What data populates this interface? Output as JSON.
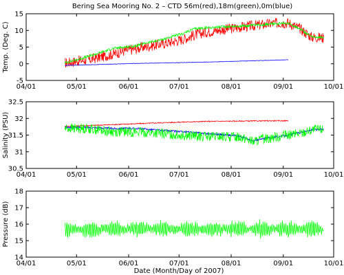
{
  "figure": {
    "title": "Bering Sea Mooring No. 2 – CTD 56m(red),18m(green),0m(blue)",
    "xlabel": "Date (Month/Day of 2007)"
  },
  "chart_data": [
    {
      "type": "line",
      "ylabel": "Temp. (Deg. C)",
      "xlim": [
        "04/01",
        "10/01"
      ],
      "ylim": [
        -5,
        15
      ],
      "x_tick_labels": [
        "04/01",
        "05/01",
        "06/01",
        "07/01",
        "08/01",
        "09/01",
        "10/01"
      ],
      "y_ticks": [
        -5,
        0,
        5,
        10,
        15
      ],
      "grid": false,
      "legend": "none",
      "colors": {
        "56m": "#ff0000",
        "18m": "#00ff00",
        "0m": "#0000ff"
      },
      "series": [
        {
          "x": [
            "04/24",
            "05/01",
            "05/08",
            "05/15",
            "05/22",
            "05/29",
            "06/05",
            "06/12",
            "06/19",
            "06/26",
            "07/03",
            "07/10",
            "07/17",
            "07/24",
            "07/31",
            "08/07",
            "08/14",
            "08/21",
            "08/28",
            "09/04",
            "09/11",
            "09/18",
            "09/25"
          ],
          "values": [
            0.2,
            0.8,
            1.2,
            2.0,
            2.8,
            3.8,
            4.5,
            5.2,
            5.8,
            6.5,
            7.3,
            8.6,
            9.5,
            10.0,
            10.5,
            11.0,
            11.4,
            11.8,
            12.2,
            12.3,
            10.5,
            8.0,
            7.8
          ],
          "noise": 1.6
        },
        {
          "x": [
            "04/24",
            "05/01",
            "05/08",
            "05/15",
            "05/22",
            "05/29",
            "06/05",
            "06/12",
            "06/19",
            "06/26",
            "07/03",
            "07/10",
            "07/17",
            "07/24",
            "07/31",
            "08/07",
            "08/14",
            "08/21",
            "08/28",
            "09/04",
            "09/11",
            "09/18",
            "09/25"
          ],
          "values": [
            0.3,
            1.2,
            2.2,
            3.3,
            4.5,
            5.0,
            5.3,
            6.3,
            7.0,
            8.0,
            9.0,
            10.5,
            10.8,
            11.0,
            11.2,
            11.3,
            11.5,
            11.8,
            12.0,
            12.2,
            10.5,
            8.0,
            7.8
          ],
          "noise": 0.4
        },
        {
          "x": [
            "04/24",
            "05/15",
            "06/05",
            "06/26",
            "07/17",
            "08/07",
            "08/28",
            "09/04"
          ],
          "values": [
            -0.5,
            -0.2,
            0.1,
            0.3,
            0.5,
            0.8,
            1.1,
            1.2
          ],
          "noise": 0.05
        }
      ]
    },
    {
      "type": "line",
      "ylabel": "Salinity (PSU)",
      "xlim": [
        "04/01",
        "10/01"
      ],
      "ylim": [
        30.5,
        32.5
      ],
      "x_tick_labels": [
        "04/01",
        "05/01",
        "06/01",
        "07/01",
        "08/01",
        "09/01",
        "10/01"
      ],
      "y_ticks": [
        30.5,
        31,
        31.5,
        32,
        32.5
      ],
      "grid": false,
      "legend": "none",
      "colors": {
        "56m": "#ff0000",
        "18m": "#00ff00",
        "0m": "#0000ff"
      },
      "series": [
        {
          "x": [
            "04/24",
            "05/15",
            "06/05",
            "06/26",
            "07/17",
            "08/07",
            "08/28",
            "09/04"
          ],
          "values": [
            31.76,
            31.8,
            31.84,
            31.88,
            31.91,
            31.92,
            31.93,
            31.93
          ],
          "noise": 0.015
        },
        {
          "x": [
            "04/24",
            "05/08",
            "05/22",
            "06/05",
            "06/19",
            "07/03",
            "07/17",
            "07/31",
            "08/07",
            "08/14",
            "08/21",
            "08/28",
            "09/04",
            "09/11",
            "09/18",
            "09/25"
          ],
          "values": [
            31.7,
            31.7,
            31.6,
            31.6,
            31.55,
            31.5,
            31.45,
            31.45,
            31.45,
            31.3,
            31.4,
            31.45,
            31.5,
            31.55,
            31.65,
            31.68
          ],
          "noise": 0.15
        },
        {
          "x": [
            "04/24",
            "05/08",
            "05/22",
            "06/05",
            "06/19",
            "07/03",
            "07/17",
            "07/31",
            "08/07",
            "08/14",
            "08/21",
            "08/28",
            "09/04",
            "09/11",
            "09/18",
            "09/25"
          ],
          "values": [
            31.73,
            31.73,
            31.7,
            31.7,
            31.65,
            31.6,
            31.55,
            31.5,
            31.45,
            31.32,
            31.4,
            31.45,
            31.5,
            31.58,
            31.65,
            31.68
          ],
          "noise": 0.03
        }
      ]
    },
    {
      "type": "line",
      "ylabel": "Pressure (dB)",
      "xlim": [
        "04/01",
        "10/01"
      ],
      "ylim": [
        14,
        18
      ],
      "x_tick_labels": [
        "04/01",
        "05/01",
        "06/01",
        "07/01",
        "08/01",
        "09/01",
        "10/01"
      ],
      "y_ticks": [
        14,
        15,
        16,
        17,
        18
      ],
      "grid": false,
      "legend": "none",
      "colors": {
        "18m": "#00ff00"
      },
      "series": [
        {
          "x": [
            "04/24",
            "09/25"
          ],
          "values": [
            15.7,
            15.7
          ],
          "tidal_amplitude": 0.55,
          "noise": 0.12
        }
      ]
    }
  ]
}
